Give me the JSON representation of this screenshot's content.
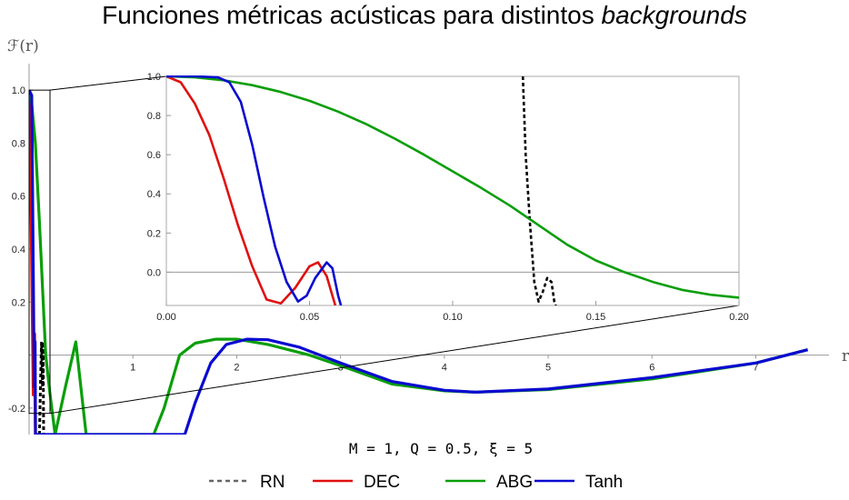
{
  "chart_data": {
    "type": "line",
    "title_main": "Funciones métricas acústicas para distintos ",
    "title_italic": "backgrounds",
    "ylabel": "ℱ(r)",
    "xlabel": "r",
    "parameters": "M = 1, Q = 0.5, ξ = 5",
    "main": {
      "xlim": [
        0,
        7.6
      ],
      "ylim": [
        -0.3,
        1.1
      ],
      "xticks": [
        1,
        2,
        3,
        4,
        5,
        6,
        7
      ],
      "yticks": [
        -0.2,
        0.2,
        0.4,
        0.6,
        0.8,
        1.0
      ],
      "ytick_labels": [
        "-0.2",
        "0.2",
        "0.4",
        "0.6",
        "0.8",
        "1.0"
      ]
    },
    "inset": {
      "xlim": [
        0,
        0.2
      ],
      "ylim": [
        -0.17,
        1.0
      ],
      "xticks": [
        0.0,
        0.05,
        0.1,
        0.15,
        0.2
      ],
      "xtick_labels": [
        "0.00",
        "0.05",
        "0.10",
        "0.15",
        "0.20"
      ],
      "yticks": [
        0.0,
        0.2,
        0.4,
        0.6,
        0.8,
        1.0
      ],
      "ytick_labels": [
        "0.0",
        "0.2",
        "0.4",
        "0.6",
        "0.8",
        "1.0"
      ]
    },
    "series": [
      {
        "name": "RN",
        "color": "#000000",
        "dashed": true,
        "main_points": [
          [
            0.1,
            -0.3
          ],
          [
            0.11,
            -0.1
          ],
          [
            0.12,
            0.05
          ],
          [
            0.13,
            -0.12
          ],
          [
            0.135,
            0.05
          ],
          [
            0.14,
            -0.3
          ]
        ],
        "inset_points": [
          [
            0.1245,
            1.0
          ],
          [
            0.1255,
            0.6
          ],
          [
            0.127,
            0.25
          ],
          [
            0.1285,
            -0.05
          ],
          [
            0.13,
            -0.15
          ],
          [
            0.1315,
            -0.1
          ],
          [
            0.133,
            -0.03
          ],
          [
            0.1345,
            -0.05
          ],
          [
            0.1355,
            -0.15
          ],
          [
            0.136,
            -0.17
          ]
        ]
      },
      {
        "name": "DEC",
        "color": "#e01010",
        "dashed": false,
        "main_points": [
          [
            0.0,
            1.0
          ],
          [
            0.02,
            0.5
          ],
          [
            0.04,
            -0.15
          ],
          [
            0.053,
            0.08
          ],
          [
            0.06,
            -0.3
          ]
        ],
        "inset_points": [
          [
            0.0,
            1.0
          ],
          [
            0.005,
            0.97
          ],
          [
            0.01,
            0.86
          ],
          [
            0.015,
            0.7
          ],
          [
            0.02,
            0.48
          ],
          [
            0.025,
            0.24
          ],
          [
            0.03,
            0.03
          ],
          [
            0.035,
            -0.14
          ],
          [
            0.04,
            -0.16
          ],
          [
            0.045,
            -0.08
          ],
          [
            0.05,
            0.03
          ],
          [
            0.053,
            0.05
          ],
          [
            0.056,
            -0.02
          ],
          [
            0.058,
            -0.12
          ],
          [
            0.059,
            -0.17
          ]
        ]
      },
      {
        "name": "ABG",
        "color": "#0a9e0a",
        "dashed": false,
        "main_points": [
          [
            0.0,
            1.0
          ],
          [
            0.02,
            0.97
          ],
          [
            0.06,
            0.8
          ],
          [
            0.1,
            0.5
          ],
          [
            0.16,
            0.0
          ],
          [
            0.2,
            -0.14
          ],
          [
            0.25,
            -0.3
          ],
          [
            0.35,
            -0.12
          ],
          [
            0.45,
            0.05
          ],
          [
            0.55,
            -0.3
          ],
          [
            1.2,
            -0.3
          ],
          [
            1.3,
            -0.2
          ],
          [
            1.45,
            0.0
          ],
          [
            1.6,
            0.045
          ],
          [
            1.8,
            0.06
          ],
          [
            2.0,
            0.06
          ],
          [
            2.3,
            0.04
          ],
          [
            2.7,
            0.0
          ],
          [
            3.0,
            -0.04
          ],
          [
            3.5,
            -0.11
          ],
          [
            4.0,
            -0.135
          ],
          [
            4.3,
            -0.14
          ],
          [
            5.0,
            -0.13
          ],
          [
            6.0,
            -0.09
          ],
          [
            7.0,
            -0.03
          ],
          [
            7.5,
            0.02
          ]
        ],
        "inset_points": [
          [
            0.0,
            1.0
          ],
          [
            0.01,
            0.995
          ],
          [
            0.02,
            0.98
          ],
          [
            0.03,
            0.955
          ],
          [
            0.04,
            0.92
          ],
          [
            0.05,
            0.875
          ],
          [
            0.06,
            0.82
          ],
          [
            0.07,
            0.755
          ],
          [
            0.08,
            0.68
          ],
          [
            0.09,
            0.6
          ],
          [
            0.1,
            0.515
          ],
          [
            0.11,
            0.43
          ],
          [
            0.12,
            0.34
          ],
          [
            0.13,
            0.24
          ],
          [
            0.14,
            0.14
          ],
          [
            0.15,
            0.06
          ],
          [
            0.16,
            0.0
          ],
          [
            0.17,
            -0.05
          ],
          [
            0.18,
            -0.09
          ],
          [
            0.19,
            -0.115
          ],
          [
            0.2,
            -0.13
          ]
        ]
      },
      {
        "name": "Tanh",
        "color": "#0a0ad0",
        "dashed": false,
        "main_points": [
          [
            0.0,
            1.0
          ],
          [
            0.025,
            0.98
          ],
          [
            0.05,
            -0.12
          ],
          [
            0.058,
            0.05
          ],
          [
            0.062,
            -0.3
          ],
          [
            1.5,
            -0.3
          ],
          [
            1.6,
            -0.18
          ],
          [
            1.75,
            -0.03
          ],
          [
            1.9,
            0.04
          ],
          [
            2.1,
            0.06
          ],
          [
            2.3,
            0.058
          ],
          [
            2.6,
            0.03
          ],
          [
            3.0,
            -0.03
          ],
          [
            3.5,
            -0.1
          ],
          [
            4.0,
            -0.133
          ],
          [
            4.3,
            -0.14
          ],
          [
            5.0,
            -0.128
          ],
          [
            6.0,
            -0.085
          ],
          [
            7.0,
            -0.03
          ],
          [
            7.5,
            0.02
          ]
        ],
        "inset_points": [
          [
            0.0,
            1.0
          ],
          [
            0.01,
            1.0
          ],
          [
            0.018,
            0.995
          ],
          [
            0.022,
            0.97
          ],
          [
            0.026,
            0.87
          ],
          [
            0.03,
            0.65
          ],
          [
            0.034,
            0.38
          ],
          [
            0.038,
            0.13
          ],
          [
            0.042,
            -0.05
          ],
          [
            0.046,
            -0.15
          ],
          [
            0.049,
            -0.12
          ],
          [
            0.052,
            -0.03
          ],
          [
            0.056,
            0.05
          ],
          [
            0.058,
            0.02
          ],
          [
            0.06,
            -0.12
          ],
          [
            0.061,
            -0.17
          ]
        ]
      }
    ]
  }
}
